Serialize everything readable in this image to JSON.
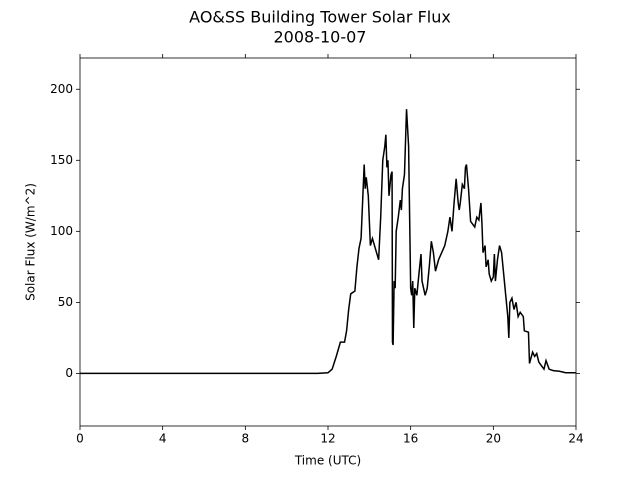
{
  "chart_data": {
    "type": "line",
    "title": "AO&SS Building Tower Solar Flux",
    "subtitle": "2008-10-07",
    "xlabel": "Time (UTC)",
    "ylabel": "Solar Flux (W/m^2)",
    "xlim": [
      0,
      24
    ],
    "ylim": [
      -37,
      222
    ],
    "xticks": [
      0,
      4,
      8,
      12,
      16,
      20,
      24
    ],
    "yticks": [
      0,
      50,
      100,
      150,
      200
    ],
    "grid": false,
    "series": [
      {
        "name": "Solar Flux",
        "color": "#000000",
        "x": [
          0,
          11.5,
          12.0,
          12.2,
          12.4,
          12.6,
          12.8,
          12.9,
          13.0,
          13.1,
          13.3,
          13.4,
          13.5,
          13.6,
          13.75,
          13.8,
          13.85,
          13.95,
          14.05,
          14.15,
          14.25,
          14.35,
          14.45,
          14.55,
          14.65,
          14.75,
          14.8,
          14.85,
          14.9,
          14.95,
          15.05,
          15.1,
          15.12,
          15.15,
          15.2,
          15.25,
          15.3,
          15.4,
          15.5,
          15.55,
          15.6,
          15.7,
          15.8,
          15.9,
          15.95,
          16.0,
          16.05,
          16.1,
          16.15,
          16.2,
          16.3,
          16.4,
          16.5,
          16.55,
          16.7,
          16.8,
          16.9,
          17.0,
          17.1,
          17.2,
          17.35,
          17.5,
          17.65,
          17.8,
          17.9,
          18.0,
          18.1,
          18.2,
          18.3,
          18.35,
          18.4,
          18.5,
          18.6,
          18.65,
          18.7,
          18.8,
          18.9,
          19.0,
          19.1,
          19.2,
          19.3,
          19.4,
          19.45,
          19.5,
          19.6,
          19.65,
          19.75,
          19.8,
          19.9,
          20.0,
          20.05,
          20.1,
          20.2,
          20.3,
          20.4,
          20.5,
          20.6,
          20.7,
          20.75,
          20.8,
          20.9,
          21.0,
          21.1,
          21.2,
          21.3,
          21.45,
          21.5,
          21.7,
          21.75,
          21.9,
          22.0,
          22.1,
          22.2,
          22.3,
          22.45,
          22.55,
          22.7,
          22.9,
          23.2,
          23.5,
          24
        ],
        "values": [
          0,
          0,
          0.5,
          3,
          12,
          22,
          22,
          30,
          45,
          56,
          58,
          75,
          88,
          95,
          147,
          130,
          138,
          125,
          90,
          95,
          90,
          85,
          80,
          110,
          150,
          160,
          168,
          145,
          150,
          125,
          140,
          142,
          22,
          20,
          65,
          60,
          100,
          110,
          122,
          115,
          130,
          140,
          186,
          160,
          110,
          60,
          55,
          65,
          32,
          60,
          55,
          70,
          84,
          65,
          55,
          60,
          75,
          93,
          85,
          72,
          80,
          85,
          90,
          100,
          110,
          100,
          120,
          137,
          120,
          115,
          120,
          133,
          130,
          145,
          147,
          130,
          107,
          105,
          103,
          110,
          108,
          120,
          105,
          85,
          90,
          75,
          80,
          70,
          65,
          68,
          84,
          65,
          80,
          90,
          85,
          70,
          55,
          40,
          25,
          50,
          53,
          45,
          50,
          40,
          43,
          40,
          30,
          29,
          7,
          15,
          12,
          14,
          8,
          6,
          3,
          9,
          3,
          2,
          1.5,
          0.5,
          0.5
        ]
      }
    ]
  }
}
